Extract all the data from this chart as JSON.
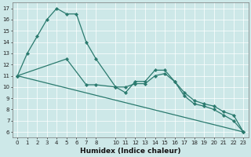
{
  "xlabel": "Humidex (Indice chaleur)",
  "xlim": [
    -0.5,
    23.5
  ],
  "ylim": [
    5.5,
    17.5
  ],
  "yticks": [
    6,
    7,
    8,
    9,
    10,
    11,
    12,
    13,
    14,
    15,
    16,
    17
  ],
  "xticks": [
    0,
    1,
    2,
    3,
    4,
    5,
    6,
    7,
    8,
    10,
    11,
    12,
    13,
    14,
    15,
    16,
    17,
    18,
    19,
    20,
    21,
    22,
    23
  ],
  "line_color": "#2a7a6e",
  "bg_color": "#cde8e8",
  "grid_color": "#ffffff",
  "line1_x": [
    0,
    1,
    2,
    3,
    4,
    5,
    6,
    7,
    8,
    10,
    11,
    12,
    13,
    14,
    15,
    16,
    17,
    18,
    19,
    20,
    21,
    22,
    23
  ],
  "line1_y": [
    11,
    13,
    14.5,
    16,
    17,
    16.5,
    16.5,
    14.0,
    12.5,
    10.0,
    9.5,
    10.5,
    10.5,
    11.5,
    11.5,
    10.5,
    9.2,
    8.5,
    8.3,
    8.0,
    7.5,
    7.0,
    6.0
  ],
  "line2_x": [
    0,
    23
  ],
  "line2_y": [
    11,
    6.0
  ],
  "line3_x": [
    0,
    5,
    7,
    8,
    10,
    11,
    12,
    13,
    14,
    15,
    16,
    17,
    18,
    19,
    20,
    21,
    22,
    23
  ],
  "line3_y": [
    11,
    12.5,
    10.2,
    10.2,
    10.0,
    10.0,
    10.3,
    10.3,
    11.0,
    11.2,
    10.5,
    9.5,
    8.8,
    8.5,
    8.3,
    7.8,
    7.5,
    6.0
  ],
  "xlabel_fontsize": 6.5,
  "tick_fontsize": 5.0
}
